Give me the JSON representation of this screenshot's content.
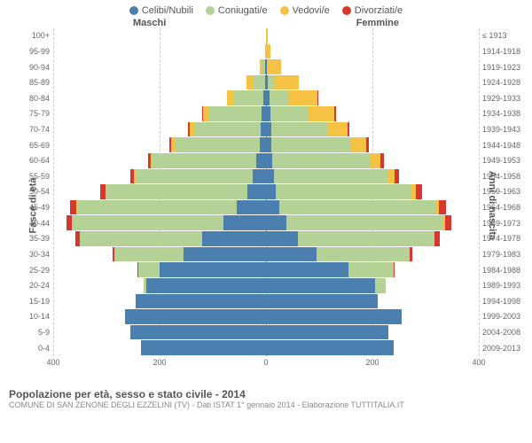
{
  "type": "population-pyramid",
  "legend": [
    {
      "label": "Celibi/Nubili",
      "color": "#4a7fb0"
    },
    {
      "label": "Coniugati/e",
      "color": "#b4d196"
    },
    {
      "label": "Vedovi/e",
      "color": "#f6c244"
    },
    {
      "label": "Divorziati/e",
      "color": "#d9362f"
    }
  ],
  "headers": {
    "left": "Maschi",
    "right": "Femmine"
  },
  "axis_left_label": "Fasce di età",
  "axis_right_label": "Anni di nascita",
  "title": "Popolazione per età, sesso e stato civile - 2014",
  "subtitle": "COMUNE DI SAN ZENONE DEGLI EZZELINI (TV) - Dati ISTAT 1° gennaio 2014 - Elaborazione TUTTITALIA.IT",
  "xlim": 400,
  "xticks_m": [
    400,
    200,
    0
  ],
  "xticks_f": [
    200,
    400
  ],
  "background_color": "#ffffff",
  "grid_color": "#cccccc",
  "centerline_color": "#888888",
  "row_height": 17.5,
  "segment_colors": {
    "s": "#4a7fb0",
    "m": "#b4d196",
    "w": "#f6c244",
    "d": "#d9362f"
  },
  "rows": [
    {
      "age": "100+",
      "birth": "≤ 1913",
      "m": {
        "s": 0,
        "m": 0,
        "w": 0,
        "d": 0
      },
      "f": {
        "s": 0,
        "m": 0,
        "w": 3,
        "d": 0
      }
    },
    {
      "age": "95-99",
      "birth": "1914-1918",
      "m": {
        "s": 0,
        "m": 0,
        "w": 2,
        "d": 0
      },
      "f": {
        "s": 0,
        "m": 0,
        "w": 8,
        "d": 0
      }
    },
    {
      "age": "90-94",
      "birth": "1919-1923",
      "m": {
        "s": 1,
        "m": 5,
        "w": 6,
        "d": 0
      },
      "f": {
        "s": 2,
        "m": 2,
        "w": 25,
        "d": 0
      }
    },
    {
      "age": "85-89",
      "birth": "1924-1928",
      "m": {
        "s": 2,
        "m": 22,
        "w": 12,
        "d": 0
      },
      "f": {
        "s": 4,
        "m": 12,
        "w": 46,
        "d": 0
      }
    },
    {
      "age": "80-84",
      "birth": "1929-1933",
      "m": {
        "s": 5,
        "m": 55,
        "w": 14,
        "d": 0
      },
      "f": {
        "s": 6,
        "m": 35,
        "w": 55,
        "d": 2
      }
    },
    {
      "age": "75-79",
      "birth": "1934-1938",
      "m": {
        "s": 8,
        "m": 98,
        "w": 12,
        "d": 2
      },
      "f": {
        "s": 8,
        "m": 70,
        "w": 50,
        "d": 4
      }
    },
    {
      "age": "70-74",
      "birth": "1939-1943",
      "m": {
        "s": 10,
        "m": 125,
        "w": 8,
        "d": 3
      },
      "f": {
        "s": 10,
        "m": 105,
        "w": 38,
        "d": 4
      }
    },
    {
      "age": "65-69",
      "birth": "1944-1948",
      "m": {
        "s": 12,
        "m": 160,
        "w": 6,
        "d": 4
      },
      "f": {
        "s": 10,
        "m": 150,
        "w": 28,
        "d": 5
      }
    },
    {
      "age": "60-64",
      "birth": "1949-1953",
      "m": {
        "s": 18,
        "m": 195,
        "w": 4,
        "d": 5
      },
      "f": {
        "s": 12,
        "m": 185,
        "w": 18,
        "d": 6
      }
    },
    {
      "age": "55-59",
      "birth": "1954-1958",
      "m": {
        "s": 25,
        "m": 220,
        "w": 3,
        "d": 7
      },
      "f": {
        "s": 15,
        "m": 215,
        "w": 12,
        "d": 8
      }
    },
    {
      "age": "50-54",
      "birth": "1959-1963",
      "m": {
        "s": 35,
        "m": 265,
        "w": 2,
        "d": 10
      },
      "f": {
        "s": 18,
        "m": 255,
        "w": 8,
        "d": 12
      }
    },
    {
      "age": "45-49",
      "birth": "1964-1968",
      "m": {
        "s": 55,
        "m": 300,
        "w": 1,
        "d": 12
      },
      "f": {
        "s": 25,
        "m": 295,
        "w": 5,
        "d": 14
      }
    },
    {
      "age": "40-44",
      "birth": "1969-1973",
      "m": {
        "s": 80,
        "m": 285,
        "w": 0,
        "d": 10
      },
      "f": {
        "s": 38,
        "m": 295,
        "w": 3,
        "d": 12
      }
    },
    {
      "age": "35-39",
      "birth": "1974-1978",
      "m": {
        "s": 120,
        "m": 230,
        "w": 0,
        "d": 8
      },
      "f": {
        "s": 60,
        "m": 255,
        "w": 1,
        "d": 10
      }
    },
    {
      "age": "30-34",
      "birth": "1979-1983",
      "m": {
        "s": 155,
        "m": 130,
        "w": 0,
        "d": 4
      },
      "f": {
        "s": 95,
        "m": 175,
        "w": 0,
        "d": 5
      }
    },
    {
      "age": "25-29",
      "birth": "1984-1988",
      "m": {
        "s": 200,
        "m": 40,
        "w": 0,
        "d": 1
      },
      "f": {
        "s": 155,
        "m": 85,
        "w": 0,
        "d": 2
      }
    },
    {
      "age": "20-24",
      "birth": "1989-1993",
      "m": {
        "s": 225,
        "m": 5,
        "w": 0,
        "d": 0
      },
      "f": {
        "s": 205,
        "m": 20,
        "w": 0,
        "d": 0
      }
    },
    {
      "age": "15-19",
      "birth": "1994-1998",
      "m": {
        "s": 245,
        "m": 0,
        "w": 0,
        "d": 0
      },
      "f": {
        "s": 210,
        "m": 0,
        "w": 0,
        "d": 0
      }
    },
    {
      "age": "10-14",
      "birth": "1999-2003",
      "m": {
        "s": 265,
        "m": 0,
        "w": 0,
        "d": 0
      },
      "f": {
        "s": 255,
        "m": 0,
        "w": 0,
        "d": 0
      }
    },
    {
      "age": "5-9",
      "birth": "2004-2008",
      "m": {
        "s": 255,
        "m": 0,
        "w": 0,
        "d": 0
      },
      "f": {
        "s": 230,
        "m": 0,
        "w": 0,
        "d": 0
      }
    },
    {
      "age": "0-4",
      "birth": "2009-2013",
      "m": {
        "s": 235,
        "m": 0,
        "w": 0,
        "d": 0
      },
      "f": {
        "s": 240,
        "m": 0,
        "w": 0,
        "d": 0
      }
    }
  ]
}
